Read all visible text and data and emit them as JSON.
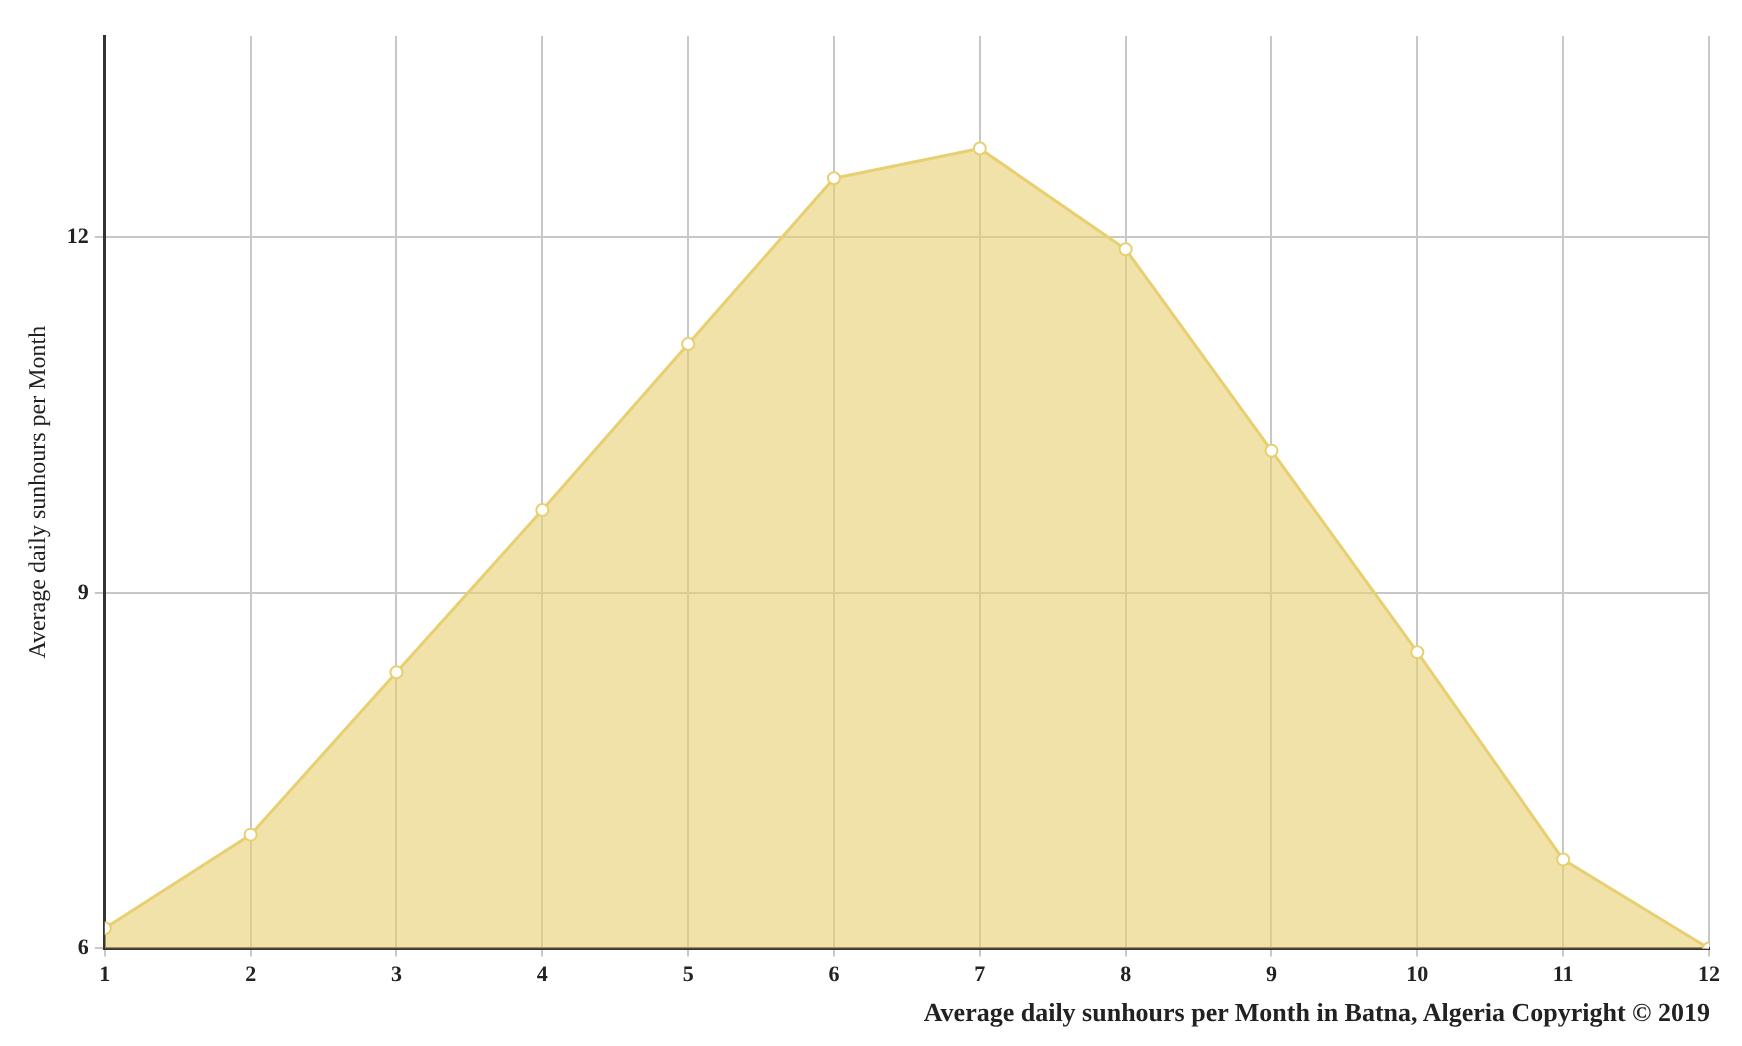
{
  "chart_data": {
    "type": "area",
    "ylabel": "Average daily sunhours per Month",
    "annotations": [
      "Average daily sunhours per Month in Batna, Algeria Copyright © 2019"
    ],
    "x": [
      1,
      2,
      3,
      4,
      5,
      6,
      7,
      8,
      9,
      10,
      11,
      12
    ],
    "series": [
      {
        "color": "#e8cf70",
        "values": [
          6.17,
          6.96,
          8.33,
          9.7,
          11.1,
          12.5,
          12.75,
          11.9,
          10.2,
          8.5,
          6.75,
          6.0
        ]
      }
    ],
    "xlim": [
      1,
      12
    ],
    "xticks": [
      1,
      2,
      3,
      4,
      5,
      6,
      7,
      8,
      9,
      10,
      11,
      12
    ],
    "ylim": [
      6,
      13.7
    ],
    "yticks": [
      6,
      9,
      12
    ],
    "grid": true,
    "marker": "circle",
    "line_style": "solid",
    "legend": false
  }
}
